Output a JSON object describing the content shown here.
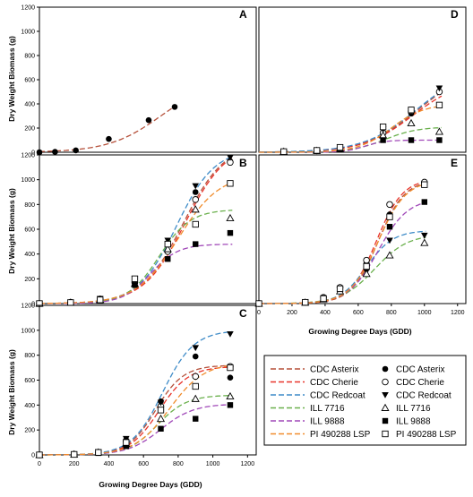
{
  "figure": {
    "ylabel": "Dry Weight Biomass (g)",
    "xlabel": "Growing Degree Days (GDD)"
  },
  "legend": {
    "line_items": [
      "CDC Asterix",
      "CDC Cherie",
      "CDC Redcoat",
      "ILL 7716",
      "ILL 9888",
      "PI 490288 LSP"
    ],
    "marker_items": [
      "CDC Asterix",
      "CDC Cherie",
      "CDC Redcoat",
      "ILL 7716",
      "ILL 9888",
      "PI 490288 LSP"
    ],
    "colors": [
      "#b5503a",
      "#e8342a",
      "#3f8cc8",
      "#6ab04c",
      "#a048b8",
      "#f08c2c"
    ],
    "markers": [
      "filled-circle",
      "open-circle",
      "filled-triangle-down",
      "open-triangle-up",
      "filled-square",
      "open-square"
    ]
  },
  "chart_data": [
    {
      "panel": "A",
      "type": "scatter",
      "xlim": [
        0,
        1250
      ],
      "ylim": [
        0,
        1200
      ],
      "xticks": [],
      "yticks": [
        0,
        200,
        400,
        600,
        800,
        1000,
        1200
      ],
      "series": [
        {
          "name": "CDC Asterix",
          "marker": "filled-circle",
          "color": "#b5503a",
          "x": [
            0,
            90,
            210,
            400,
            630,
            780
          ],
          "y": [
            0,
            3,
            15,
            110,
            265,
            375
          ],
          "fit": {
            "K": 600,
            "m": 700,
            "s": 150
          }
        }
      ]
    },
    {
      "panel": "D",
      "type": "scatter",
      "xlim": [
        0,
        1250
      ],
      "ylim": [
        0,
        1200
      ],
      "xticks": [],
      "yticks": [],
      "series": [
        {
          "name": "CDC Asterix",
          "marker": "filled-circle",
          "color": "#b5503a",
          "x": [
            150,
            350,
            490,
            750,
            920,
            1090
          ],
          "y": [
            5,
            10,
            30,
            120,
            320,
            500
          ],
          "fit": {
            "K": 700,
            "m": 960,
            "s": 160
          }
        },
        {
          "name": "CDC Cherie",
          "marker": "open-circle",
          "color": "#e8342a",
          "x": [
            150,
            350,
            490,
            750,
            920,
            1090
          ],
          "y": [
            5,
            12,
            35,
            160,
            340,
            500
          ],
          "fit": {
            "K": 610,
            "m": 930,
            "s": 150
          }
        },
        {
          "name": "CDC Redcoat",
          "marker": "filled-triangle-down",
          "color": "#3f8cc8",
          "x": [
            150,
            350,
            490,
            750,
            920,
            1090
          ],
          "y": [
            5,
            15,
            40,
            190,
            340,
            530
          ],
          "fit": {
            "K": 700,
            "m": 950,
            "s": 160
          }
        },
        {
          "name": "ILL 7716",
          "marker": "open-triangle-up",
          "color": "#6ab04c",
          "x": [
            150,
            350,
            490,
            750,
            920,
            1090
          ],
          "y": [
            5,
            12,
            30,
            140,
            240,
            170
          ],
          "fit": {
            "K": 210,
            "m": 760,
            "s": 100
          }
        },
        {
          "name": "ILL 9888",
          "marker": "filled-square",
          "color": "#a048b8",
          "x": [
            150,
            350,
            490,
            750,
            920,
            1090
          ],
          "y": [
            5,
            10,
            25,
            100,
            100,
            100
          ],
          "fit": {
            "K": 100,
            "m": 640,
            "s": 60
          }
        },
        {
          "name": "PI 490288 LSP",
          "marker": "open-square",
          "color": "#f08c2c",
          "x": [
            150,
            350,
            490,
            750,
            920,
            1090
          ],
          "y": [
            5,
            15,
            40,
            210,
            350,
            390
          ],
          "fit": {
            "K": 400,
            "m": 800,
            "s": 100
          }
        }
      ]
    },
    {
      "panel": "B",
      "type": "scatter",
      "xlim": [
        0,
        1250
      ],
      "ylim": [
        0,
        1200
      ],
      "xticks": [],
      "yticks": [
        0,
        200,
        400,
        600,
        800,
        1000,
        1200
      ],
      "series": [
        {
          "name": "CDC Asterix",
          "marker": "filled-circle",
          "color": "#b5503a",
          "x": [
            0,
            180,
            350,
            550,
            740,
            900,
            1100
          ],
          "y": [
            0,
            10,
            40,
            180,
            480,
            900,
            1150
          ],
          "fit": {
            "K": 1300,
            "m": 830,
            "s": 120
          }
        },
        {
          "name": "CDC Cherie",
          "marker": "open-circle",
          "color": "#e8342a",
          "x": [
            0,
            180,
            350,
            550,
            740,
            900,
            1100
          ],
          "y": [
            0,
            10,
            35,
            170,
            420,
            840,
            1140
          ],
          "fit": {
            "K": 1300,
            "m": 840,
            "s": 120
          }
        },
        {
          "name": "CDC Redcoat",
          "marker": "filled-triangle-down",
          "color": "#3f8cc8",
          "x": [
            0,
            180,
            350,
            550,
            740,
            900,
            1100
          ],
          "y": [
            0,
            10,
            40,
            200,
            510,
            950,
            1180
          ],
          "fit": {
            "K": 1250,
            "m": 790,
            "s": 110
          }
        },
        {
          "name": "ILL 7716",
          "marker": "open-triangle-up",
          "color": "#6ab04c",
          "x": [
            0,
            180,
            350,
            550,
            740,
            900,
            1100
          ],
          "y": [
            0,
            8,
            30,
            160,
            440,
            760,
            690
          ],
          "fit": {
            "K": 760,
            "m": 690,
            "s": 90
          }
        },
        {
          "name": "ILL 9888",
          "marker": "filled-square",
          "color": "#a048b8",
          "x": [
            0,
            180,
            350,
            550,
            740,
            900,
            1100
          ],
          "y": [
            0,
            6,
            25,
            150,
            360,
            480,
            570
          ],
          "fit": {
            "K": 480,
            "m": 640,
            "s": 80
          }
        },
        {
          "name": "PI 490288 LSP",
          "marker": "open-square",
          "color": "#f08c2c",
          "x": [
            0,
            180,
            350,
            550,
            740,
            900,
            1100
          ],
          "y": [
            0,
            8,
            30,
            200,
            480,
            640,
            970
          ],
          "fit": {
            "K": 1050,
            "m": 800,
            "s": 120
          }
        }
      ]
    },
    {
      "panel": "E",
      "type": "scatter",
      "xlim": [
        0,
        1250
      ],
      "ylim": [
        0,
        1200
      ],
      "xticks": [
        0,
        200,
        400,
        600,
        800,
        1000,
        1200
      ],
      "yticks": [],
      "series": [
        {
          "name": "CDC Asterix",
          "marker": "filled-circle",
          "color": "#b5503a",
          "x": [
            0,
            280,
            390,
            490,
            650,
            790,
            1000
          ],
          "y": [
            0,
            10,
            40,
            110,
            330,
            720,
            980
          ],
          "fit": {
            "K": 1000,
            "m": 720,
            "s": 80
          }
        },
        {
          "name": "CDC Cherie",
          "marker": "open-circle",
          "color": "#e8342a",
          "x": [
            0,
            280,
            390,
            490,
            650,
            790,
            1000
          ],
          "y": [
            0,
            10,
            50,
            130,
            350,
            800,
            980
          ],
          "fit": {
            "K": 1010,
            "m": 710,
            "s": 80
          }
        },
        {
          "name": "CDC Redcoat",
          "marker": "filled-triangle-down",
          "color": "#3f8cc8",
          "x": [
            0,
            280,
            390,
            490,
            650,
            790,
            1000
          ],
          "y": [
            0,
            10,
            40,
            110,
            260,
            510,
            550
          ],
          "fit": {
            "K": 590,
            "m": 650,
            "s": 80
          }
        },
        {
          "name": "ILL 7716",
          "marker": "open-triangle-up",
          "color": "#6ab04c",
          "x": [
            0,
            280,
            390,
            490,
            650,
            790,
            1000
          ],
          "y": [
            0,
            8,
            35,
            100,
            240,
            390,
            490
          ],
          "fit": {
            "K": 560,
            "m": 700,
            "s": 100
          }
        },
        {
          "name": "ILL 9888",
          "marker": "filled-square",
          "color": "#a048b8",
          "x": [
            0,
            280,
            390,
            490,
            650,
            790,
            1000
          ],
          "y": [
            0,
            10,
            45,
            120,
            290,
            620,
            820
          ],
          "fit": {
            "K": 850,
            "m": 720,
            "s": 90
          }
        },
        {
          "name": "PI 490288 LSP",
          "marker": "open-square",
          "color": "#f08c2c",
          "x": [
            0,
            280,
            390,
            490,
            650,
            790,
            1000
          ],
          "y": [
            0,
            10,
            40,
            120,
            300,
            700,
            960
          ],
          "fit": {
            "K": 1000,
            "m": 720,
            "s": 85
          }
        }
      ]
    },
    {
      "panel": "C",
      "type": "scatter",
      "xlim": [
        0,
        1250
      ],
      "ylim": [
        0,
        1200
      ],
      "xticks": [
        0,
        200,
        400,
        600,
        800,
        1000,
        1200
      ],
      "yticks": [
        0,
        200,
        400,
        600,
        800,
        1000,
        1200
      ],
      "series": [
        {
          "name": "CDC Asterix",
          "marker": "filled-circle",
          "color": "#b5503a",
          "x": [
            0,
            200,
            340,
            500,
            700,
            900,
            1100
          ],
          "y": [
            0,
            5,
            25,
            120,
            430,
            790,
            620
          ],
          "fit": {
            "K": 720,
            "m": 670,
            "s": 80
          }
        },
        {
          "name": "CDC Cherie",
          "marker": "open-circle",
          "color": "#e8342a",
          "x": [
            0,
            200,
            340,
            500,
            700,
            900,
            1100
          ],
          "y": [
            0,
            5,
            20,
            110,
            390,
            630,
            710
          ],
          "fit": {
            "K": 710,
            "m": 690,
            "s": 85
          }
        },
        {
          "name": "CDC Redcoat",
          "marker": "filled-triangle-down",
          "color": "#3f8cc8",
          "x": [
            0,
            200,
            340,
            500,
            700,
            900,
            1100
          ],
          "y": [
            0,
            5,
            25,
            130,
            420,
            860,
            970
          ],
          "fit": {
            "K": 1000,
            "m": 710,
            "s": 90
          }
        },
        {
          "name": "ILL 7716",
          "marker": "open-triangle-up",
          "color": "#6ab04c",
          "x": [
            0,
            200,
            340,
            500,
            700,
            900,
            1100
          ],
          "y": [
            0,
            4,
            20,
            90,
            290,
            450,
            470
          ],
          "fit": {
            "K": 480,
            "m": 680,
            "s": 85
          }
        },
        {
          "name": "ILL 9888",
          "marker": "filled-square",
          "color": "#a048b8",
          "x": [
            0,
            200,
            340,
            500,
            700,
            900,
            1100
          ],
          "y": [
            0,
            3,
            15,
            70,
            210,
            290,
            400
          ],
          "fit": {
            "K": 410,
            "m": 700,
            "s": 95
          }
        },
        {
          "name": "PI 490288 LSP",
          "marker": "open-square",
          "color": "#f08c2c",
          "x": [
            0,
            200,
            340,
            500,
            700,
            900,
            1100
          ],
          "y": [
            0,
            4,
            20,
            100,
            360,
            550,
            700
          ],
          "fit": {
            "K": 740,
            "m": 750,
            "s": 100
          }
        }
      ]
    }
  ]
}
